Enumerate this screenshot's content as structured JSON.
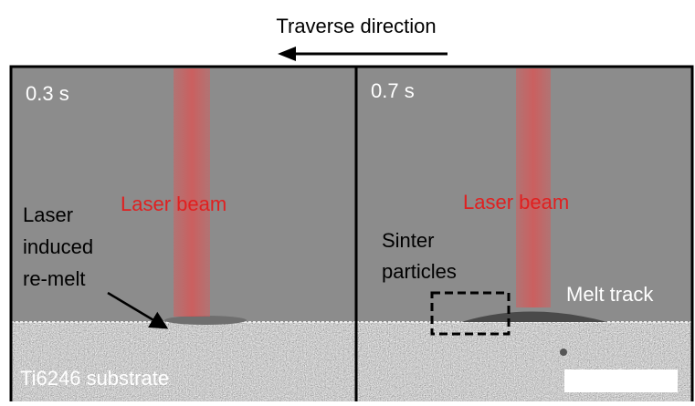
{
  "header": {
    "title": "Traverse direction"
  },
  "panels": [
    {
      "time": "0.3 s",
      "beam_label": "Laser beam",
      "annotation": [
        "Laser",
        "induced",
        "re-melt"
      ],
      "substrate_label": "Ti6246 substrate"
    },
    {
      "time": "0.7 s",
      "beam_label": "Laser beam",
      "annotation": [
        "Sinter",
        "particles"
      ],
      "track_label": "Melt track"
    }
  ]
}
